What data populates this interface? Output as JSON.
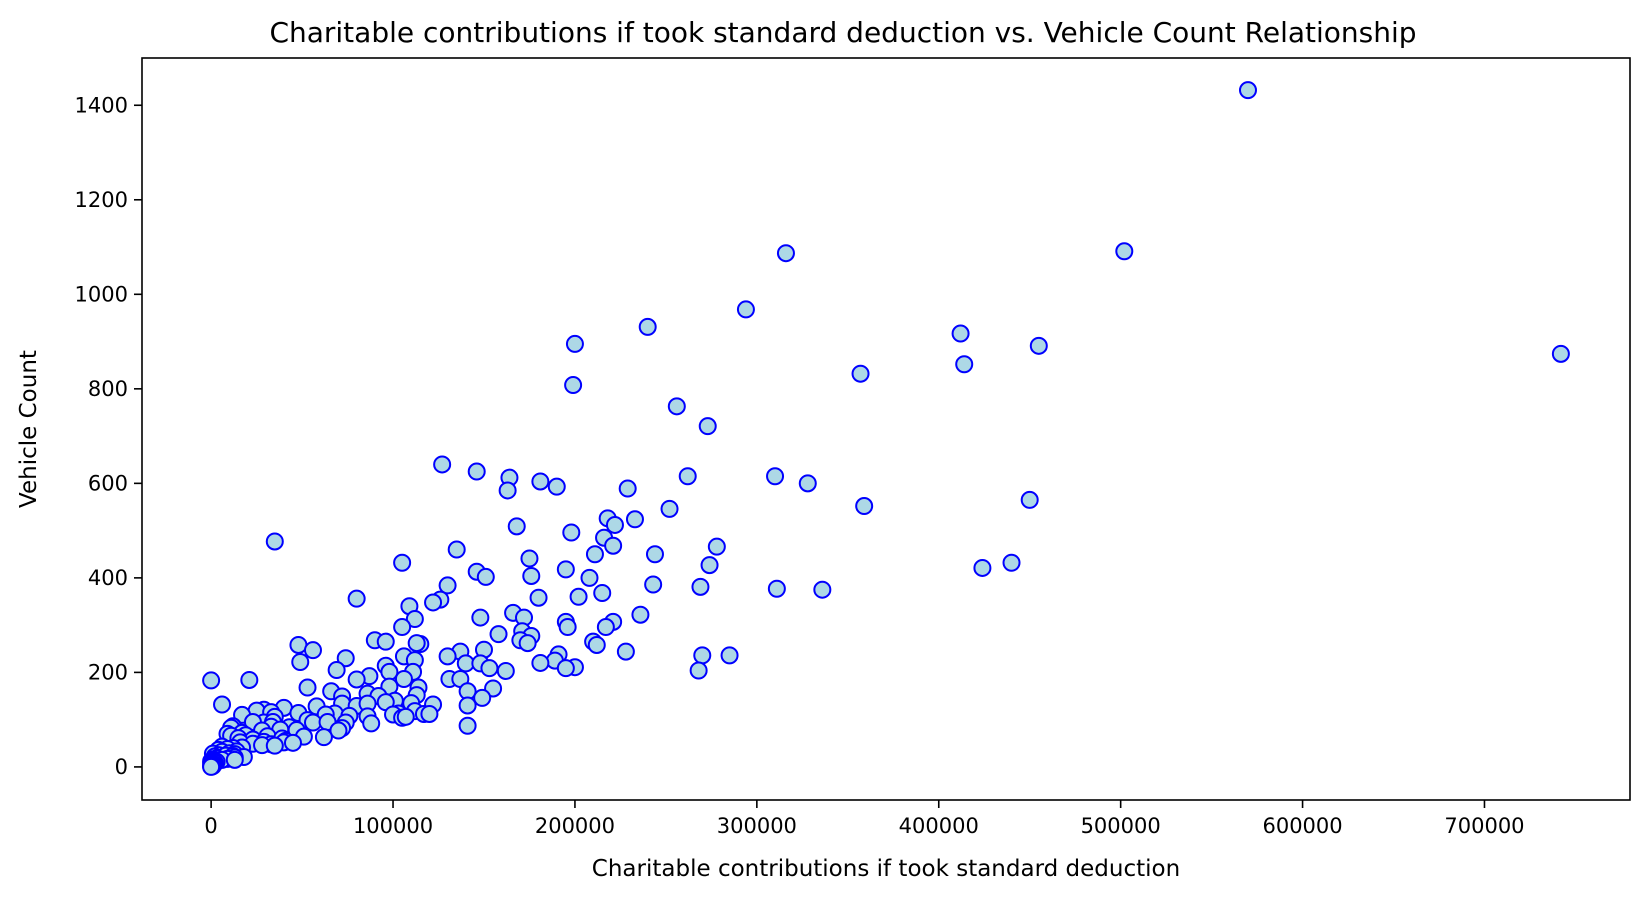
{
  "chart_data": {
    "type": "scatter",
    "title": "Charitable contributions if took standard deduction vs. Vehicle Count Relationship",
    "xlabel": "Charitable contributions if took standard deduction",
    "ylabel": "Vehicle Count",
    "xlim": [
      -38000,
      780000
    ],
    "ylim": [
      -70,
      1500
    ],
    "xticks": [
      0,
      100000,
      200000,
      300000,
      400000,
      500000,
      600000,
      700000
    ],
    "xtick_labels": [
      "0",
      "100000",
      "200000",
      "300000",
      "400000",
      "500000",
      "600000",
      "700000"
    ],
    "yticks": [
      0,
      200,
      400,
      600,
      800,
      1000,
      1200,
      1400
    ],
    "ytick_labels": [
      "0",
      "200",
      "400",
      "600",
      "800",
      "1000",
      "1200",
      "1400"
    ],
    "grid": false,
    "marker": {
      "fill": "#add8e6",
      "edge": "#0000ff"
    },
    "points": [
      [
        570000,
        1432
      ],
      [
        742000,
        874
      ],
      [
        502000,
        1091
      ],
      [
        316000,
        1087
      ],
      [
        294000,
        968
      ],
      [
        240000,
        931
      ],
      [
        412000,
        917
      ],
      [
        455000,
        891
      ],
      [
        200000,
        895
      ],
      [
        414000,
        852
      ],
      [
        357000,
        832
      ],
      [
        199000,
        808
      ],
      [
        256000,
        763
      ],
      [
        273000,
        721
      ],
      [
        127000,
        640
      ],
      [
        146000,
        625
      ],
      [
        164000,
        612
      ],
      [
        163000,
        585
      ],
      [
        262000,
        615
      ],
      [
        310000,
        615
      ],
      [
        328000,
        600
      ],
      [
        181000,
        604
      ],
      [
        190000,
        593
      ],
      [
        229000,
        589
      ],
      [
        450000,
        565
      ],
      [
        359000,
        552
      ],
      [
        252000,
        546
      ],
      [
        233000,
        524
      ],
      [
        218000,
        526
      ],
      [
        168000,
        509
      ],
      [
        222000,
        512
      ],
      [
        198000,
        496
      ],
      [
        216000,
        485
      ],
      [
        278000,
        466
      ],
      [
        221000,
        468
      ],
      [
        135000,
        460
      ],
      [
        211000,
        450
      ],
      [
        244000,
        450
      ],
      [
        175000,
        441
      ],
      [
        105000,
        432
      ],
      [
        274000,
        427
      ],
      [
        440000,
        432
      ],
      [
        424000,
        421
      ],
      [
        195000,
        418
      ],
      [
        146000,
        413
      ],
      [
        151000,
        402
      ],
      [
        176000,
        404
      ],
      [
        208000,
        400
      ],
      [
        243000,
        386
      ],
      [
        130000,
        384
      ],
      [
        269000,
        381
      ],
      [
        311000,
        377
      ],
      [
        336000,
        375
      ],
      [
        215000,
        368
      ],
      [
        180000,
        358
      ],
      [
        202000,
        360
      ],
      [
        80000,
        356
      ],
      [
        126000,
        354
      ],
      [
        122000,
        348
      ],
      [
        109000,
        340
      ],
      [
        35000,
        477
      ],
      [
        166000,
        326
      ],
      [
        172000,
        316
      ],
      [
        148000,
        316
      ],
      [
        236000,
        322
      ],
      [
        112000,
        313
      ],
      [
        195000,
        307
      ],
      [
        221000,
        307
      ],
      [
        105000,
        296
      ],
      [
        196000,
        296
      ],
      [
        217000,
        296
      ],
      [
        171000,
        287
      ],
      [
        158000,
        281
      ],
      [
        176000,
        277
      ],
      [
        170000,
        268
      ],
      [
        90000,
        268
      ],
      [
        96000,
        265
      ],
      [
        210000,
        265
      ],
      [
        212000,
        258
      ],
      [
        174000,
        262
      ],
      [
        115000,
        260
      ],
      [
        113000,
        262
      ],
      [
        48000,
        258
      ],
      [
        56000,
        247
      ],
      [
        150000,
        248
      ],
      [
        137000,
        244
      ],
      [
        228000,
        244
      ],
      [
        285000,
        236
      ],
      [
        270000,
        236
      ],
      [
        191000,
        238
      ],
      [
        189000,
        225
      ],
      [
        74000,
        230
      ],
      [
        130000,
        234
      ],
      [
        106000,
        234
      ],
      [
        49000,
        222
      ],
      [
        112000,
        226
      ],
      [
        181000,
        220
      ],
      [
        140000,
        219
      ],
      [
        148000,
        219
      ],
      [
        200000,
        211
      ],
      [
        153000,
        209
      ],
      [
        195000,
        209
      ],
      [
        162000,
        203
      ],
      [
        268000,
        204
      ],
      [
        96000,
        214
      ],
      [
        69000,
        205
      ],
      [
        98000,
        201
      ],
      [
        111000,
        201
      ],
      [
        87000,
        192
      ],
      [
        80000,
        185
      ],
      [
        106000,
        186
      ],
      [
        131000,
        186
      ],
      [
        137000,
        186
      ],
      [
        21000,
        184
      ],
      [
        0,
        183
      ],
      [
        53000,
        168
      ],
      [
        98000,
        170
      ],
      [
        114000,
        168
      ],
      [
        155000,
        166
      ],
      [
        141000,
        160
      ],
      [
        66000,
        160
      ],
      [
        86000,
        155
      ],
      [
        92000,
        150
      ],
      [
        113000,
        152
      ],
      [
        72000,
        149
      ],
      [
        149000,
        146
      ],
      [
        101000,
        140
      ],
      [
        96000,
        137
      ],
      [
        110000,
        135
      ],
      [
        72000,
        134
      ],
      [
        58000,
        128
      ],
      [
        40000,
        125
      ],
      [
        80000,
        129
      ],
      [
        86000,
        134
      ],
      [
        141000,
        130
      ],
      [
        122000,
        132
      ],
      [
        6000,
        132
      ],
      [
        29000,
        121
      ],
      [
        25000,
        119
      ],
      [
        33000,
        116
      ],
      [
        68000,
        113
      ],
      [
        63000,
        111
      ],
      [
        48000,
        114
      ],
      [
        112000,
        118
      ],
      [
        103000,
        113
      ],
      [
        100000,
        111
      ],
      [
        17000,
        110
      ],
      [
        105000,
        104
      ],
      [
        117000,
        112
      ],
      [
        76000,
        108
      ],
      [
        86000,
        107
      ],
      [
        35000,
        106
      ],
      [
        53000,
        99
      ],
      [
        120000,
        112
      ],
      [
        107000,
        106
      ],
      [
        29000,
        94
      ],
      [
        56000,
        94
      ],
      [
        23000,
        95
      ],
      [
        34000,
        95
      ],
      [
        64000,
        95
      ],
      [
        74000,
        94
      ],
      [
        88000,
        92
      ],
      [
        12000,
        86
      ],
      [
        33000,
        85
      ],
      [
        72000,
        82
      ],
      [
        141000,
        87
      ],
      [
        43000,
        84
      ],
      [
        11000,
        83
      ],
      [
        38000,
        79
      ],
      [
        47000,
        78
      ],
      [
        28000,
        77
      ],
      [
        70000,
        77
      ],
      [
        17000,
        72
      ],
      [
        9000,
        70
      ],
      [
        19000,
        67
      ],
      [
        11000,
        66
      ],
      [
        31000,
        65
      ],
      [
        51000,
        64
      ],
      [
        62000,
        63
      ],
      [
        15000,
        61
      ],
      [
        39000,
        60
      ],
      [
        23000,
        58
      ],
      [
        41000,
        55
      ],
      [
        29000,
        53
      ],
      [
        16000,
        52
      ],
      [
        40000,
        52
      ],
      [
        45000,
        51
      ],
      [
        23000,
        49
      ],
      [
        33000,
        48
      ],
      [
        28000,
        46
      ],
      [
        35000,
        45
      ],
      [
        6000,
        43
      ],
      [
        17000,
        41
      ],
      [
        12000,
        40
      ],
      [
        9000,
        38
      ],
      [
        4000,
        36
      ],
      [
        14000,
        33
      ],
      [
        6000,
        32
      ],
      [
        10000,
        29
      ],
      [
        1000,
        28
      ],
      [
        13000,
        27
      ],
      [
        4000,
        25
      ],
      [
        8000,
        24
      ],
      [
        12000,
        23
      ],
      [
        2000,
        22
      ],
      [
        18000,
        21
      ],
      [
        13000,
        20
      ],
      [
        3000,
        18
      ],
      [
        9000,
        17
      ],
      [
        1000,
        16
      ],
      [
        6000,
        15
      ],
      [
        2000,
        13
      ],
      [
        13000,
        15
      ],
      [
        0,
        12
      ],
      [
        3000,
        11
      ],
      [
        1000,
        10
      ],
      [
        2000,
        9
      ],
      [
        0,
        8
      ],
      [
        500,
        7
      ],
      [
        1500,
        6
      ],
      [
        300,
        5
      ],
      [
        800,
        4
      ],
      [
        0,
        3
      ],
      [
        200,
        2
      ],
      [
        1000,
        2
      ],
      [
        0,
        1
      ],
      [
        600,
        1
      ],
      [
        0,
        0
      ]
    ]
  }
}
